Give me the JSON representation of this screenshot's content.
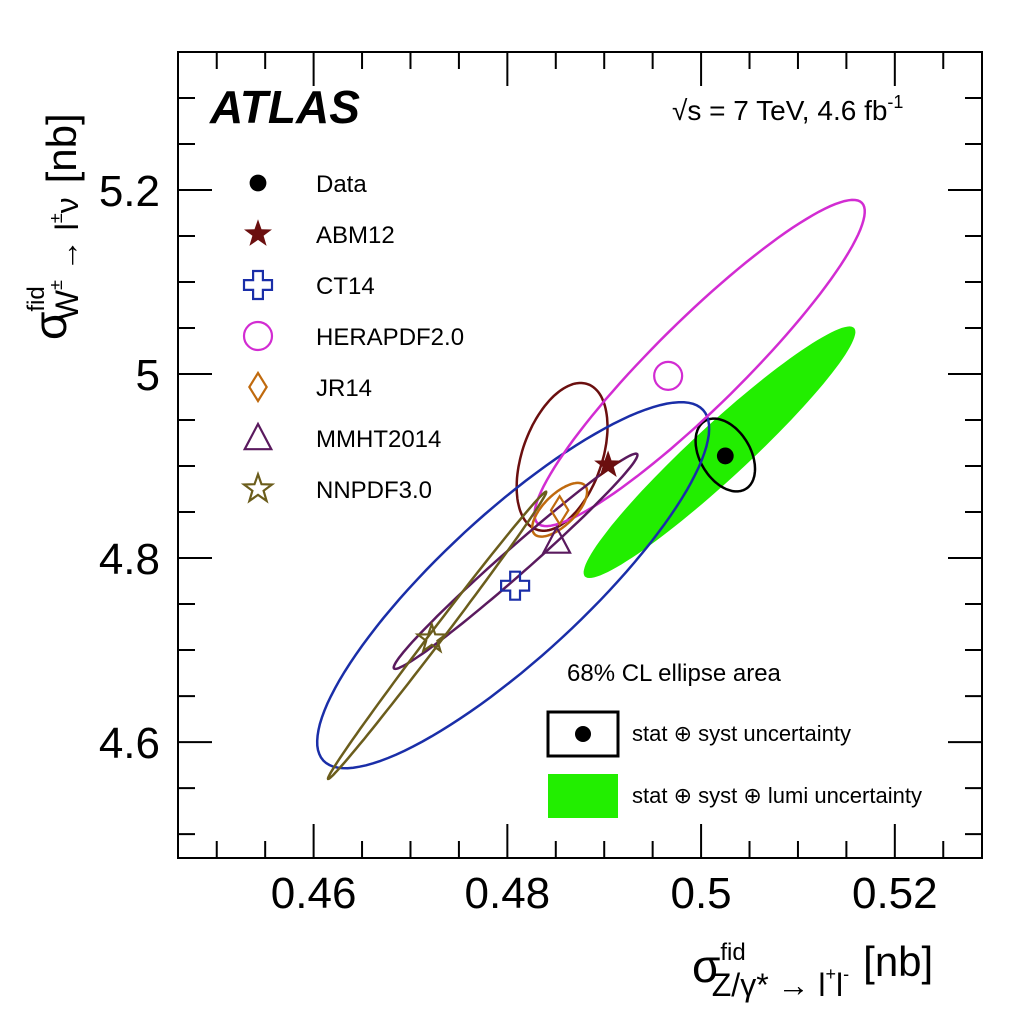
{
  "chart_data": {
    "type": "scatter",
    "brand_label": "ATLAS",
    "energy_label": {
      "sqrt_sign": "√",
      "prefix": "s = 7 TeV, 4.6 fb",
      "sup": "-1"
    },
    "xlabel": {
      "sigma": "σ",
      "sup": "fid",
      "sub": "Z/γ* → l",
      "sub_sup1": "+",
      "sub_mid": "l",
      "sub_sup2": "-",
      "unit": "[nb]"
    },
    "ylabel": {
      "sigma": "σ",
      "sup": "fid",
      "sub": "W",
      "sub_sup1": "±",
      "sub_mid": " → l",
      "sub_sup2": "±",
      "sub_end": "ν",
      "unit": "[nb]"
    },
    "xlim": [
      0.446,
      0.529
    ],
    "ylim": [
      4.474,
      5.35
    ],
    "x_ticks": [
      {
        "value": 0.46,
        "label": "0.46"
      },
      {
        "value": 0.48,
        "label": "0.48"
      },
      {
        "value": 0.5,
        "label": "0.5"
      },
      {
        "value": 0.52,
        "label": "0.52"
      }
    ],
    "y_ticks": [
      {
        "value": 4.6,
        "label": "4.6"
      },
      {
        "value": 4.8,
        "label": "4.8"
      },
      {
        "value": 5.0,
        "label": "5"
      },
      {
        "value": 5.2,
        "label": "5.2"
      }
    ],
    "series": [
      {
        "name": "Data",
        "marker": "filled-circle",
        "color": "#000000",
        "x": 0.5025,
        "y": 4.911,
        "ellipse": {
          "points": [
            [
              0.5004,
              4.949
            ],
            [
              0.5049,
              4.923
            ],
            [
              0.5046,
              4.875
            ],
            [
              0.5001,
              4.901
            ]
          ],
          "fill": null
        }
      },
      {
        "name": "ABM12",
        "marker": "filled-star",
        "color": "#6b0f0f",
        "x": 0.4904,
        "y": 4.901,
        "ellipse": {
          "points": [
            [
              0.4883,
              4.989
            ],
            [
              0.4924,
              4.955
            ],
            [
              0.483,
              4.831
            ],
            [
              0.484,
              4.857
            ]
          ],
          "fill": null
        }
      },
      {
        "name": "CT14",
        "marker": "open-cross",
        "color": "#1a2ea8",
        "x": 0.4808,
        "y": 4.77,
        "ellipse": {
          "points": [
            [
              0.4824,
              4.859
            ],
            [
              0.5002,
              4.961
            ],
            [
              0.462,
              4.572
            ],
            [
              0.461,
              4.58
            ]
          ],
          "fill": null
        }
      },
      {
        "name": "HERAPDF2.0",
        "marker": "open-circle",
        "color": "#d22cd2",
        "x": 0.4966,
        "y": 4.998,
        "ellipse": {
          "points": [
            [
              0.4831,
              4.838
            ],
            [
              0.4889,
              4.861
            ],
            [
              0.5166,
              5.186
            ],
            [
              0.4908,
              4.99
            ]
          ],
          "fill": null
        }
      },
      {
        "name": "JR14",
        "marker": "open-diamond",
        "color": "#c06a0e",
        "x": 0.4854,
        "y": 4.852,
        "ellipse": {
          "points": [
            [
              0.4848,
              4.876
            ],
            [
              0.488,
              4.879
            ],
            [
              0.4843,
              4.829
            ],
            [
              0.4828,
              4.826
            ]
          ],
          "fill": null
        }
      },
      {
        "name": "MMHT2014",
        "marker": "open-triangle",
        "color": "#5a1a5e",
        "x": 0.4851,
        "y": 4.818,
        "ellipse": {
          "points": [
            [
              0.4745,
              4.75
            ],
            [
              0.4934,
              4.913
            ],
            [
              0.4879,
              4.841
            ],
            [
              0.4683,
              4.68
            ]
          ],
          "fill": null
        }
      },
      {
        "name": "NNPDF3.0",
        "marker": "open-star",
        "color": "#6b5d1c",
        "x": 0.4722,
        "y": 4.712,
        "ellipse": {
          "points": [
            [
              0.4615,
              4.56
            ],
            [
              0.4618,
              4.562
            ],
            [
              0.4841,
              4.87
            ],
            [
              0.484,
              4.872
            ]
          ],
          "fill": null
        }
      },
      {
        "name": "",
        "marker": "none",
        "color": "#22ee00",
        "ellipse": {
          "points": [
            [
              0.488,
              4.78
            ],
            [
              0.4901,
              4.78
            ],
            [
              0.5158,
              5.05
            ],
            [
              0.5141,
              5.045
            ]
          ],
          "fill": "#22ee00"
        }
      }
    ],
    "annotation": "68% CL ellipse area",
    "uncertainty_legend": [
      {
        "text": "stat ⊕ syst uncertainty",
        "style": "outline"
      },
      {
        "text": "stat ⊕ syst ⊕ lumi uncertainty",
        "style": "filled",
        "color": "#22ee00"
      }
    ]
  }
}
